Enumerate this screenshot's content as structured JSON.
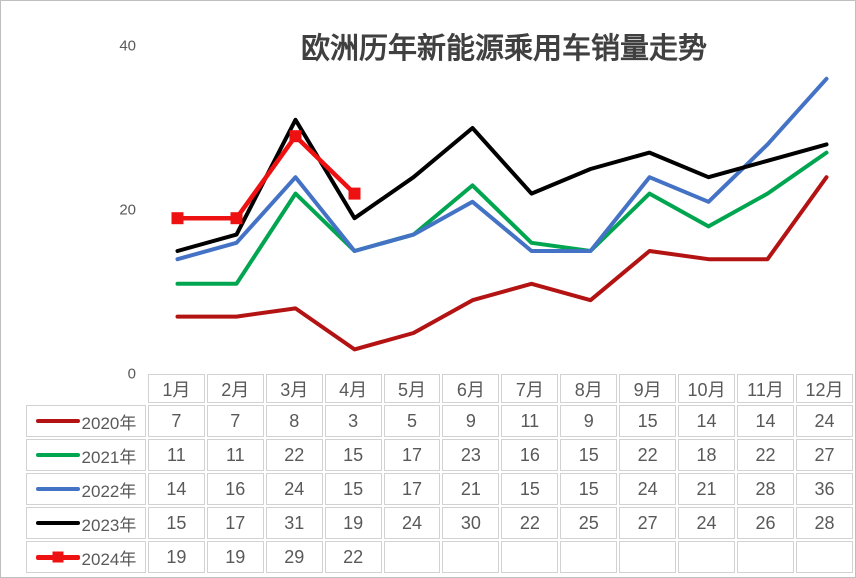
{
  "chart_data": {
    "type": "line",
    "title": "欧洲历年新能源乘用车销量走势",
    "categories": [
      "1月",
      "2月",
      "3月",
      "4月",
      "5月",
      "6月",
      "7月",
      "8月",
      "9月",
      "10月",
      "11月",
      "12月"
    ],
    "series": [
      {
        "name": "2020年",
        "color": "#B31312",
        "stroke_width": 4,
        "marker": "none",
        "values": [
          7,
          7,
          8,
          3,
          5,
          9,
          11,
          9,
          15,
          14,
          14,
          24
        ]
      },
      {
        "name": "2021年",
        "color": "#00A550",
        "stroke_width": 4,
        "marker": "none",
        "values": [
          11,
          11,
          22,
          15,
          17,
          23,
          16,
          15,
          22,
          18,
          22,
          27
        ]
      },
      {
        "name": "2022年",
        "color": "#4472C4",
        "stroke_width": 4,
        "marker": "none",
        "values": [
          14,
          16,
          24,
          15,
          17,
          21,
          15,
          15,
          24,
          21,
          28,
          36
        ]
      },
      {
        "name": "2023年",
        "color": "#000000",
        "stroke_width": 4,
        "marker": "none",
        "values": [
          15,
          17,
          31,
          19,
          24,
          30,
          22,
          25,
          27,
          24,
          26,
          28
        ]
      },
      {
        "name": "2024年",
        "color": "#EE1111",
        "stroke_width": 4.5,
        "marker": "square",
        "values": [
          19,
          19,
          29,
          22
        ]
      }
    ],
    "ylim": [
      0,
      40
    ],
    "y_ticks": [
      0,
      20,
      40
    ],
    "grid": false,
    "legend_position": "table-left",
    "xlabel": "",
    "ylabel": ""
  }
}
